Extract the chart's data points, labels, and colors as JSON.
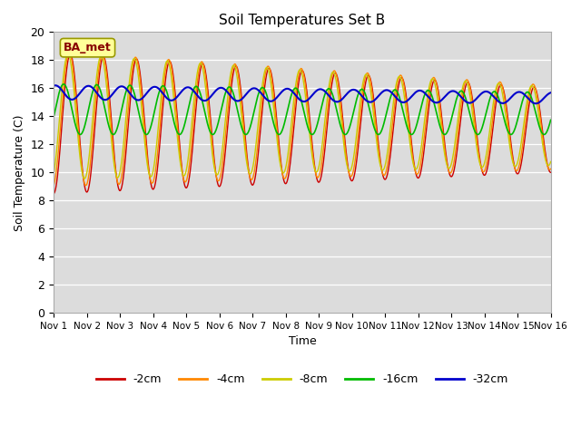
{
  "title": "Soil Temperatures Set B",
  "xlabel": "Time",
  "ylabel": "Soil Temperature (C)",
  "ylim": [
    0,
    20
  ],
  "xlim": [
    0,
    15
  ],
  "xtick_labels": [
    "Nov 1",
    "Nov 2",
    "Nov 3",
    "Nov 4",
    "Nov 5",
    "Nov 6",
    "Nov 7",
    "Nov 8",
    "Nov 9",
    "Nov 10",
    "Nov 11",
    "Nov 12",
    "Nov 13",
    "Nov 14",
    "Nov 15",
    "Nov 16"
  ],
  "xtick_positions": [
    0,
    1,
    2,
    3,
    4,
    5,
    6,
    7,
    8,
    9,
    10,
    11,
    12,
    13,
    14,
    15
  ],
  "ytick_positions": [
    0,
    2,
    4,
    6,
    8,
    10,
    12,
    14,
    16,
    18,
    20
  ],
  "bg_color": "#dcdcdc",
  "fig_color": "#ffffff",
  "legend_entries": [
    "-2cm",
    "-4cm",
    "-8cm",
    "-16cm",
    "-32cm"
  ],
  "line_colors": [
    "#cc0000",
    "#ff8800",
    "#cccc00",
    "#00bb00",
    "#0000cc"
  ],
  "annotation_text": "BA_met",
  "annotation_bg": "#ffff99",
  "annotation_border": "#999900"
}
